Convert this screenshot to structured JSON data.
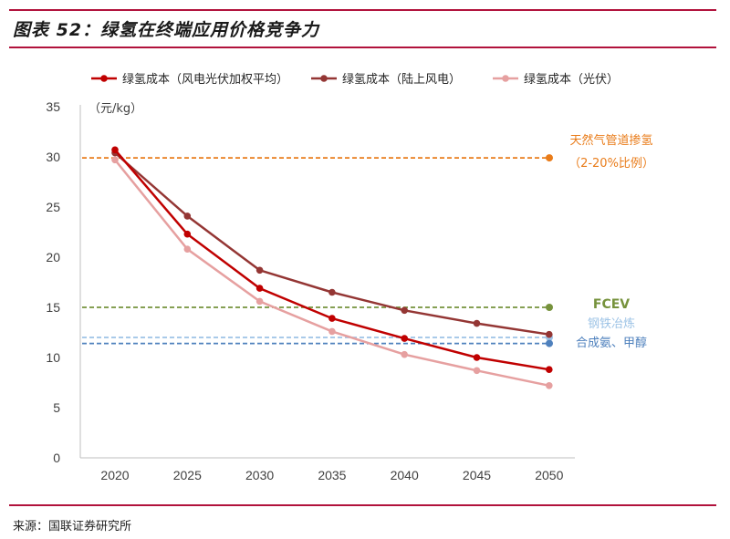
{
  "figure": {
    "title": "图表 52：绿氢在终端应用价格竞争力",
    "source": "来源：国联证券研究所"
  },
  "colors": {
    "brand": "#b1123c",
    "series": [
      "#c00000",
      "#943634",
      "#e6a0a0"
    ],
    "refs": [
      "#e97c1a",
      "#76923c",
      "#9dc3e6",
      "#4f81bd"
    ]
  },
  "chart_data": {
    "type": "line",
    "ylabel": "（元/kg）",
    "ylim": [
      0,
      35
    ],
    "yticks": [
      0,
      5,
      10,
      15,
      20,
      25,
      30,
      35
    ],
    "x": [
      2020,
      2025,
      2030,
      2035,
      2040,
      2045,
      2050
    ],
    "grid": false,
    "legend_position": "top",
    "series": [
      {
        "name": "绿氢成本（风电光伏加权平均）",
        "values": [
          30.7,
          22.3,
          16.9,
          13.9,
          11.9,
          10.0,
          8.8
        ]
      },
      {
        "name": "绿氢成本（陆上风电）",
        "values": [
          30.4,
          24.1,
          18.7,
          16.5,
          14.7,
          13.4,
          12.3
        ]
      },
      {
        "name": "绿氢成本（光伏）",
        "values": [
          29.7,
          20.8,
          15.6,
          12.6,
          10.3,
          8.7,
          7.2
        ]
      }
    ],
    "reference_lines": [
      {
        "label_lines": [
          "天然气管道掺氢",
          "（2-20%比例）"
        ],
        "value": 29.9
      },
      {
        "label_lines": [
          "FCEV"
        ],
        "value": 15.0
      },
      {
        "label_lines": [
          "钢铁冶炼"
        ],
        "value": 12.0
      },
      {
        "label_lines": [
          "合成氨、甲醇"
        ],
        "value": 11.4
      }
    ]
  }
}
